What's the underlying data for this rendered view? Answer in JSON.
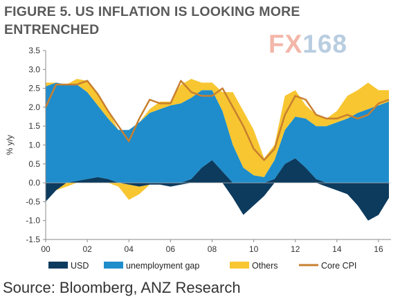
{
  "title": "FIGURE 5. US INFLATION IS LOOKING MORE ENTRENCHED",
  "logo": {
    "fx": "FX",
    "num": "168"
  },
  "source": "Source: Bloomberg, ANZ Research",
  "chart_data": {
    "type": "area",
    "title": "FIGURE 5. US INFLATION IS LOOKING MORE ENTRENCHED",
    "ylabel": "% y/y",
    "xlabel": "",
    "ylim": [
      -1.5,
      3.5
    ],
    "xlim": [
      2000,
      2016.6
    ],
    "yticks": [
      "3.5",
      "3.0",
      "2.5",
      "2.0",
      "1.5",
      "1.0",
      "0.5",
      "0.0",
      "-0.5",
      "-1.0",
      "-1.5"
    ],
    "xticks": [
      "00",
      "02",
      "04",
      "06",
      "08",
      "10",
      "12",
      "14",
      "16"
    ],
    "legend_placement": "bottom",
    "grid": false,
    "colors": {
      "USD": "#0d3b5e",
      "unemployment gap": "#1f8dcb",
      "Others": "#f7c631",
      "Core CPI": "#c87f2f"
    },
    "x": [
      2000.0,
      2000.5,
      2001.0,
      2001.5,
      2002.0,
      2002.5,
      2003.0,
      2003.5,
      2004.0,
      2004.5,
      2005.0,
      2005.5,
      2006.0,
      2006.5,
      2007.0,
      2007.5,
      2008.0,
      2008.5,
      2009.0,
      2009.5,
      2010.0,
      2010.5,
      2011.0,
      2011.5,
      2012.0,
      2012.5,
      2013.0,
      2013.5,
      2014.0,
      2014.5,
      2015.0,
      2015.5,
      2016.0,
      2016.5
    ],
    "series": [
      {
        "name": "USD",
        "values": [
          -0.5,
          -0.2,
          0.0,
          0.05,
          0.1,
          0.15,
          0.1,
          0.0,
          -0.05,
          -0.1,
          -0.05,
          -0.05,
          -0.1,
          -0.05,
          0.1,
          0.4,
          0.6,
          0.3,
          -0.4,
          -0.85,
          -0.6,
          -0.35,
          0.1,
          0.5,
          0.65,
          0.4,
          0.1,
          -0.1,
          -0.2,
          -0.3,
          -0.6,
          -1.0,
          -0.85,
          -0.4
        ]
      },
      {
        "name": "unemployment gap",
        "values": [
          2.55,
          2.65,
          2.6,
          2.55,
          2.3,
          1.9,
          1.6,
          1.4,
          1.4,
          1.6,
          1.85,
          1.95,
          2.05,
          2.1,
          2.15,
          2.05,
          1.85,
          1.6,
          1.0,
          0.4,
          0.2,
          0.15,
          0.5,
          0.9,
          1.1,
          1.3,
          1.4,
          1.5,
          1.6,
          1.7,
          1.85,
          1.95,
          2.05,
          2.15
        ]
      },
      {
        "name": "Others",
        "values": [
          0.1,
          0.0,
          -0.1,
          0.15,
          0.3,
          0.3,
          0.2,
          -0.1,
          -0.4,
          -0.2,
          0.1,
          0.2,
          0.1,
          0.5,
          0.5,
          0.2,
          0.2,
          0.5,
          1.4,
          1.5,
          1.2,
          0.5,
          0.4,
          0.9,
          0.7,
          0.35,
          0.3,
          0.2,
          0.3,
          0.6,
          0.6,
          0.7,
          0.4,
          0.3
        ]
      },
      {
        "name": "Core CPI",
        "values": [
          2.0,
          2.6,
          2.6,
          2.6,
          2.7,
          2.35,
          1.9,
          1.5,
          1.1,
          1.7,
          2.2,
          2.1,
          2.1,
          2.7,
          2.4,
          2.3,
          2.3,
          2.5,
          2.0,
          1.5,
          0.9,
          0.6,
          0.9,
          1.8,
          2.3,
          2.2,
          1.8,
          1.7,
          1.7,
          1.8,
          1.7,
          1.8,
          2.1,
          2.2
        ]
      }
    ]
  }
}
